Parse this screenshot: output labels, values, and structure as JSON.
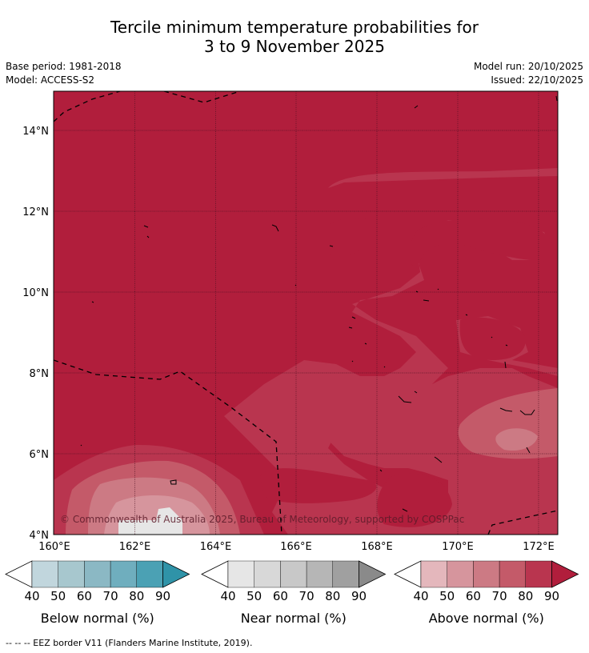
{
  "title_line1": "Tercile minimum temperature probabilities for",
  "title_line2": "3 to 9 November 2025",
  "base_period": "Base period: 1981-2018",
  "model": "Model: ACCESS-S2",
  "model_run": "Model run: 20/10/2025",
  "issued": "Issued: 22/10/2025",
  "copyright": "© Commonwealth of Australia 2025, Bureau of Meteorology, supported by COSPPac",
  "footer": "-- -- -- EEZ border V11 (Flanders Marine Institute, 2019).",
  "map": {
    "lon_range": [
      160,
      172.5
    ],
    "lat_range": [
      4,
      15
    ],
    "lat_ticks": [
      {
        "value": 14,
        "label": "14°N"
      },
      {
        "value": 12,
        "label": "12°N"
      },
      {
        "value": 10,
        "label": "10°N"
      },
      {
        "value": 8,
        "label": "8°N"
      },
      {
        "value": 6,
        "label": "6°N"
      },
      {
        "value": 4,
        "label": "4°N"
      }
    ],
    "lon_ticks": [
      {
        "value": 160,
        "label": "160°E"
      },
      {
        "value": 162,
        "label": "162°E"
      },
      {
        "value": 164,
        "label": "164°E"
      },
      {
        "value": 166,
        "label": "166°E"
      },
      {
        "value": 168,
        "label": "168°E"
      },
      {
        "value": 170,
        "label": "170°E"
      },
      {
        "value": 172,
        "label": "172°E"
      }
    ],
    "field": "above normal probability",
    "dominant_level": "80-90%"
  },
  "legends": [
    {
      "label": "Below normal (%)",
      "ticks": [
        "40",
        "50",
        "60",
        "70",
        "80",
        "90"
      ],
      "colors": [
        "#c1d6dd",
        "#a7c7ce",
        "#8bb8c4",
        "#6faebe",
        "#4ba1b4",
        "#2f93a8"
      ]
    },
    {
      "label": "Near normal (%)",
      "ticks": [
        "40",
        "50",
        "60",
        "70",
        "80",
        "90"
      ],
      "colors": [
        "#e6e6e6",
        "#d8d8d8",
        "#c8c8c8",
        "#b6b6b6",
        "#a0a0a0",
        "#8a8a8a"
      ]
    },
    {
      "label": "Above normal (%)",
      "ticks": [
        "40",
        "50",
        "60",
        "70",
        "80",
        "90"
      ],
      "colors": [
        "#e4b7bc",
        "#d6959d",
        "#cc7a84",
        "#c45a69",
        "#b9354f",
        "#b11e3c"
      ]
    }
  ]
}
